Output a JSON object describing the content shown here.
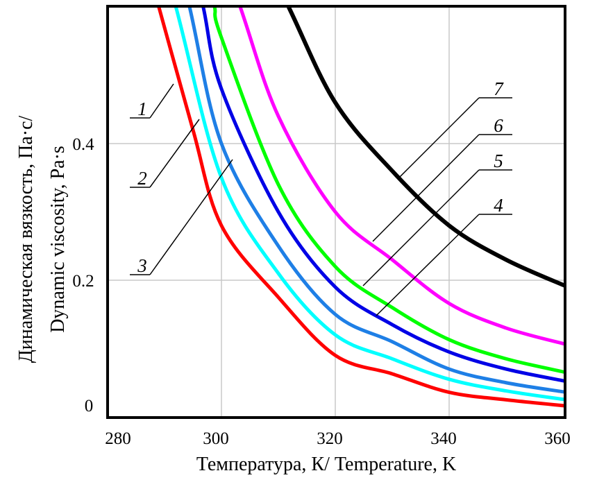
{
  "chart_data": {
    "type": "line",
    "title": "",
    "xlabel": "Температура, К/ Temperature, K",
    "ylabel_lines": [
      "Динамическая вязкость, Па·с/",
      "Dynamic viscosity, Pa·s"
    ],
    "xlim": [
      280,
      360.6
    ],
    "ylim": [
      0,
      0.6
    ],
    "grid": true,
    "x_ticks": [
      "280",
      "300",
      "320",
      "340",
      "360"
    ],
    "x_tick_values": [
      280,
      300,
      320,
      340,
      360
    ],
    "y_ticks": [
      "0",
      "0.2",
      "0.4"
    ],
    "y_tick_values": [
      0,
      0.2,
      0.4
    ],
    "series": [
      {
        "name": "1",
        "color": "#ff0000",
        "points": [
          [
            289,
            0.6
          ],
          [
            295,
            0.42
          ],
          [
            300,
            0.28
          ],
          [
            310,
            0.175
          ],
          [
            320,
            0.09
          ],
          [
            330,
            0.063
          ],
          [
            340,
            0.036
          ],
          [
            350,
            0.025
          ],
          [
            360.6,
            0.016
          ]
        ]
      },
      {
        "name": "2",
        "color": "#00ffff",
        "points": [
          [
            292,
            0.6
          ],
          [
            300,
            0.35
          ],
          [
            310,
            0.21
          ],
          [
            320,
            0.12
          ],
          [
            330,
            0.085
          ],
          [
            340,
            0.055
          ],
          [
            350,
            0.038
          ],
          [
            360.6,
            0.025
          ]
        ]
      },
      {
        "name": "3",
        "color": "#1e7fe6",
        "points": [
          [
            294.4,
            0.6
          ],
          [
            300,
            0.4
          ],
          [
            310,
            0.25
          ],
          [
            320,
            0.15
          ],
          [
            330,
            0.11
          ],
          [
            340,
            0.07
          ],
          [
            350,
            0.05
          ],
          [
            360.6,
            0.036
          ]
        ]
      },
      {
        "name": "4",
        "color": "#0000e6",
        "points": [
          [
            296.8,
            0.6
          ],
          [
            300,
            0.48
          ],
          [
            310,
            0.3
          ],
          [
            320,
            0.19
          ],
          [
            330,
            0.135
          ],
          [
            340,
            0.095
          ],
          [
            350,
            0.07
          ],
          [
            360.6,
            0.052
          ]
        ]
      },
      {
        "name": "5",
        "color": "#00ff00",
        "points": [
          [
            298.8,
            0.6
          ],
          [
            300,
            0.555
          ],
          [
            310,
            0.34
          ],
          [
            320,
            0.22
          ],
          [
            330,
            0.16
          ],
          [
            340,
            0.113
          ],
          [
            350,
            0.085
          ],
          [
            360.6,
            0.065
          ]
        ]
      },
      {
        "name": "6",
        "color": "#ff00ff",
        "points": [
          [
            303.3,
            0.6
          ],
          [
            310,
            0.44
          ],
          [
            320,
            0.3
          ],
          [
            330,
            0.23
          ],
          [
            340,
            0.166
          ],
          [
            350,
            0.13
          ],
          [
            360.6,
            0.106
          ]
        ]
      },
      {
        "name": "7",
        "color": "#000000",
        "points": [
          [
            311.8,
            0.6
          ],
          [
            320,
            0.46
          ],
          [
            330,
            0.36
          ],
          [
            340,
            0.28
          ],
          [
            350,
            0.23
          ],
          [
            360.6,
            0.191
          ]
        ]
      }
    ]
  }
}
